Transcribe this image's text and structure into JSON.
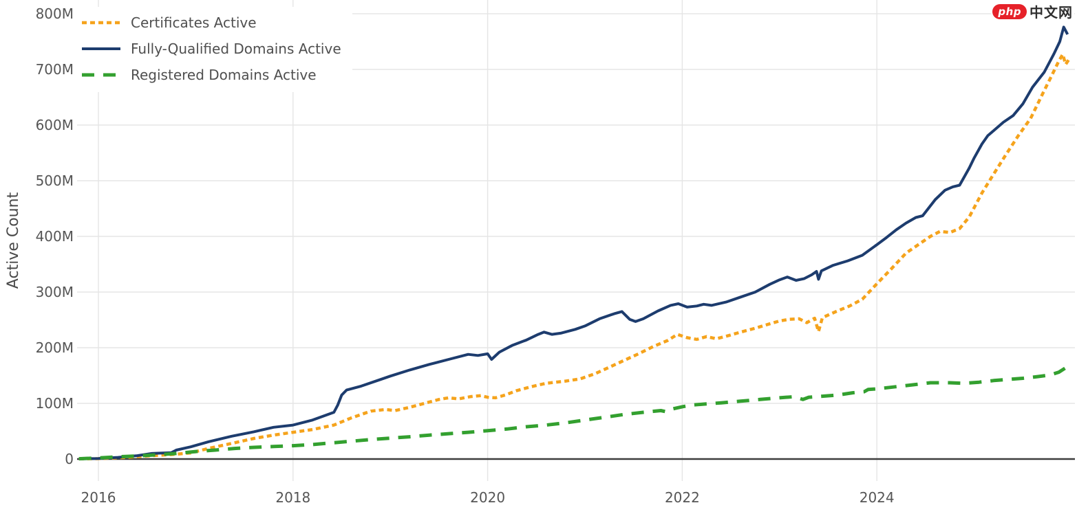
{
  "page": {
    "background_color": "#ffffff"
  },
  "branding": {
    "logo_badge_text": "php",
    "logo_suffix_text": "中文网",
    "logo_badge_color": "#e62129",
    "logo_text_color": "#2e2e2e"
  },
  "chart_data": {
    "type": "line",
    "title": "",
    "xlabel": "",
    "ylabel": "Active Count",
    "units": "millions",
    "grid": true,
    "legend_position": "top-left",
    "x_range_years": [
      2015.75,
      2026.0
    ],
    "ylim_millions": [
      0,
      800
    ],
    "axis_text_color": "#555555",
    "axis_title_color": "#4a4a4a",
    "grid_color": "#e5e5e5",
    "zero_line_color": "#3d3d3d",
    "x_ticks": [
      {
        "label": "2016",
        "value": 2016
      },
      {
        "label": "2018",
        "value": 2018
      },
      {
        "label": "2020",
        "value": 2020
      },
      {
        "label": "2022",
        "value": 2022
      },
      {
        "label": "2024",
        "value": 2024
      }
    ],
    "y_ticks": [
      {
        "label": "0",
        "value": 0
      },
      {
        "label": "100M",
        "value": 100
      },
      {
        "label": "200M",
        "value": 200
      },
      {
        "label": "300M",
        "value": 300
      },
      {
        "label": "400M",
        "value": 400
      },
      {
        "label": "500M",
        "value": 500
      },
      {
        "label": "600M",
        "value": 600
      },
      {
        "label": "700M",
        "value": 700
      },
      {
        "label": "800M",
        "value": 800
      }
    ],
    "series": [
      {
        "name": "Certificates Active",
        "color": "#f5a31c",
        "style": "dotted",
        "width": 4.5,
        "points": [
          [
            2015.8,
            0.2
          ],
          [
            2016.0,
            0.7
          ],
          [
            2016.3,
            3
          ],
          [
            2016.55,
            6
          ],
          [
            2016.75,
            8
          ],
          [
            2016.95,
            11
          ],
          [
            2017.13,
            19
          ],
          [
            2017.37,
            28
          ],
          [
            2017.6,
            37
          ],
          [
            2017.8,
            43
          ],
          [
            2018.0,
            48
          ],
          [
            2018.2,
            53
          ],
          [
            2018.42,
            61
          ],
          [
            2018.6,
            74
          ],
          [
            2018.8,
            86
          ],
          [
            2018.95,
            89
          ],
          [
            2019.05,
            87
          ],
          [
            2019.2,
            93
          ],
          [
            2019.35,
            100
          ],
          [
            2019.5,
            107
          ],
          [
            2019.6,
            110
          ],
          [
            2019.7,
            108
          ],
          [
            2019.82,
            112
          ],
          [
            2019.93,
            114
          ],
          [
            2020.0,
            111
          ],
          [
            2020.08,
            110
          ],
          [
            2020.18,
            115
          ],
          [
            2020.3,
            123
          ],
          [
            2020.45,
            130
          ],
          [
            2020.6,
            136
          ],
          [
            2020.8,
            140
          ],
          [
            2020.95,
            144
          ],
          [
            2021.1,
            153
          ],
          [
            2021.25,
            165
          ],
          [
            2021.4,
            177
          ],
          [
            2021.55,
            189
          ],
          [
            2021.7,
            202
          ],
          [
            2021.85,
            213
          ],
          [
            2021.95,
            224
          ],
          [
            2022.05,
            218
          ],
          [
            2022.15,
            215
          ],
          [
            2022.25,
            220
          ],
          [
            2022.35,
            216
          ],
          [
            2022.48,
            222
          ],
          [
            2022.6,
            228
          ],
          [
            2022.75,
            235
          ],
          [
            2022.9,
            243
          ],
          [
            2023.0,
            248
          ],
          [
            2023.1,
            251
          ],
          [
            2023.2,
            252
          ],
          [
            2023.28,
            245
          ],
          [
            2023.36,
            253
          ],
          [
            2023.4,
            229
          ],
          [
            2023.44,
            254
          ],
          [
            2023.58,
            265
          ],
          [
            2023.72,
            275
          ],
          [
            2023.85,
            287
          ],
          [
            2024.0,
            315
          ],
          [
            2024.15,
            342
          ],
          [
            2024.3,
            370
          ],
          [
            2024.45,
            388
          ],
          [
            2024.55,
            400
          ],
          [
            2024.65,
            409
          ],
          [
            2024.75,
            407
          ],
          [
            2024.85,
            414
          ],
          [
            2024.95,
            435
          ],
          [
            2025.08,
            478
          ],
          [
            2025.2,
            512
          ],
          [
            2025.32,
            545
          ],
          [
            2025.45,
            580
          ],
          [
            2025.58,
            612
          ],
          [
            2025.7,
            655
          ],
          [
            2025.8,
            690
          ],
          [
            2025.87,
            715
          ],
          [
            2025.91,
            727
          ],
          [
            2025.94,
            709
          ],
          [
            2025.97,
            717
          ]
        ]
      },
      {
        "name": "Fully-Qualified Domains Active",
        "color": "#1d3c6e",
        "style": "solid",
        "width": 4,
        "points": [
          [
            2015.8,
            0.3
          ],
          [
            2016.0,
            1
          ],
          [
            2016.2,
            3
          ],
          [
            2016.4,
            6
          ],
          [
            2016.55,
            10
          ],
          [
            2016.75,
            11.5
          ],
          [
            2016.8,
            16
          ],
          [
            2016.95,
            22
          ],
          [
            2017.13,
            31
          ],
          [
            2017.37,
            41
          ],
          [
            2017.6,
            49
          ],
          [
            2017.8,
            57
          ],
          [
            2018.0,
            61
          ],
          [
            2018.2,
            70
          ],
          [
            2018.42,
            84
          ],
          [
            2018.46,
            97
          ],
          [
            2018.5,
            115
          ],
          [
            2018.55,
            124
          ],
          [
            2018.7,
            131
          ],
          [
            2018.9,
            143
          ],
          [
            2019.0,
            149
          ],
          [
            2019.2,
            160
          ],
          [
            2019.4,
            170
          ],
          [
            2019.6,
            179
          ],
          [
            2019.8,
            188
          ],
          [
            2019.9,
            186
          ],
          [
            2020.0,
            189
          ],
          [
            2020.04,
            179
          ],
          [
            2020.12,
            192
          ],
          [
            2020.25,
            204
          ],
          [
            2020.4,
            214
          ],
          [
            2020.52,
            224
          ],
          [
            2020.58,
            228
          ],
          [
            2020.66,
            224
          ],
          [
            2020.75,
            226
          ],
          [
            2020.9,
            233
          ],
          [
            2021.0,
            239
          ],
          [
            2021.15,
            252
          ],
          [
            2021.3,
            261
          ],
          [
            2021.38,
            265
          ],
          [
            2021.46,
            251
          ],
          [
            2021.52,
            247
          ],
          [
            2021.6,
            252
          ],
          [
            2021.75,
            266
          ],
          [
            2021.88,
            276
          ],
          [
            2021.96,
            279
          ],
          [
            2022.05,
            273
          ],
          [
            2022.15,
            275
          ],
          [
            2022.22,
            278
          ],
          [
            2022.3,
            276
          ],
          [
            2022.45,
            282
          ],
          [
            2022.6,
            291
          ],
          [
            2022.75,
            300
          ],
          [
            2022.9,
            314
          ],
          [
            2023.0,
            322
          ],
          [
            2023.08,
            327
          ],
          [
            2023.17,
            321
          ],
          [
            2023.25,
            324
          ],
          [
            2023.33,
            331
          ],
          [
            2023.38,
            337
          ],
          [
            2023.4,
            323
          ],
          [
            2023.43,
            338
          ],
          [
            2023.55,
            348
          ],
          [
            2023.7,
            356
          ],
          [
            2023.85,
            366
          ],
          [
            2024.0,
            385
          ],
          [
            2024.1,
            398
          ],
          [
            2024.2,
            412
          ],
          [
            2024.3,
            424
          ],
          [
            2024.4,
            434
          ],
          [
            2024.47,
            437
          ],
          [
            2024.6,
            466
          ],
          [
            2024.7,
            483
          ],
          [
            2024.78,
            489
          ],
          [
            2024.85,
            492
          ],
          [
            2024.95,
            523
          ],
          [
            2025.0,
            541
          ],
          [
            2025.08,
            566
          ],
          [
            2025.14,
            581
          ],
          [
            2025.2,
            590
          ],
          [
            2025.3,
            605
          ],
          [
            2025.4,
            617
          ],
          [
            2025.5,
            638
          ],
          [
            2025.6,
            668
          ],
          [
            2025.72,
            695
          ],
          [
            2025.82,
            728
          ],
          [
            2025.88,
            750
          ],
          [
            2025.92,
            776
          ],
          [
            2025.96,
            763
          ]
        ]
      },
      {
        "name": "Registered Domains Active",
        "color": "#33a02f",
        "style": "dashed",
        "width": 5,
        "points": [
          [
            2015.8,
            0.5
          ],
          [
            2016.0,
            2
          ],
          [
            2016.2,
            4
          ],
          [
            2016.4,
            5.5
          ],
          [
            2016.6,
            7.5
          ],
          [
            2016.8,
            10
          ],
          [
            2017.0,
            13.5
          ],
          [
            2017.2,
            16
          ],
          [
            2017.4,
            19
          ],
          [
            2017.6,
            21
          ],
          [
            2017.8,
            22.5
          ],
          [
            2018.0,
            24
          ],
          [
            2018.2,
            26
          ],
          [
            2018.4,
            29
          ],
          [
            2018.6,
            32
          ],
          [
            2018.8,
            35
          ],
          [
            2019.0,
            37.5
          ],
          [
            2019.2,
            40
          ],
          [
            2019.4,
            43
          ],
          [
            2019.6,
            45.5
          ],
          [
            2019.8,
            48
          ],
          [
            2020.0,
            51
          ],
          [
            2020.2,
            54
          ],
          [
            2020.4,
            58
          ],
          [
            2020.6,
            61
          ],
          [
            2020.8,
            65
          ],
          [
            2021.0,
            70
          ],
          [
            2021.2,
            75
          ],
          [
            2021.4,
            80
          ],
          [
            2021.6,
            84
          ],
          [
            2021.78,
            87
          ],
          [
            2021.83,
            85
          ],
          [
            2021.9,
            90
          ],
          [
            2022.0,
            94
          ],
          [
            2022.1,
            97
          ],
          [
            2022.25,
            99
          ],
          [
            2022.4,
            101
          ],
          [
            2022.6,
            104
          ],
          [
            2022.8,
            107
          ],
          [
            2023.0,
            110
          ],
          [
            2023.15,
            112
          ],
          [
            2023.24,
            107
          ],
          [
            2023.3,
            111
          ],
          [
            2023.45,
            113
          ],
          [
            2023.6,
            115
          ],
          [
            2023.75,
            119
          ],
          [
            2023.87,
            121
          ],
          [
            2023.91,
            125
          ],
          [
            2024.0,
            126
          ],
          [
            2024.2,
            130
          ],
          [
            2024.4,
            134
          ],
          [
            2024.55,
            137
          ],
          [
            2024.75,
            137
          ],
          [
            2024.9,
            136
          ],
          [
            2025.05,
            138
          ],
          [
            2025.2,
            141
          ],
          [
            2025.35,
            143
          ],
          [
            2025.5,
            145
          ],
          [
            2025.65,
            148
          ],
          [
            2025.78,
            151
          ],
          [
            2025.87,
            156
          ],
          [
            2025.95,
            165
          ]
        ]
      }
    ]
  }
}
